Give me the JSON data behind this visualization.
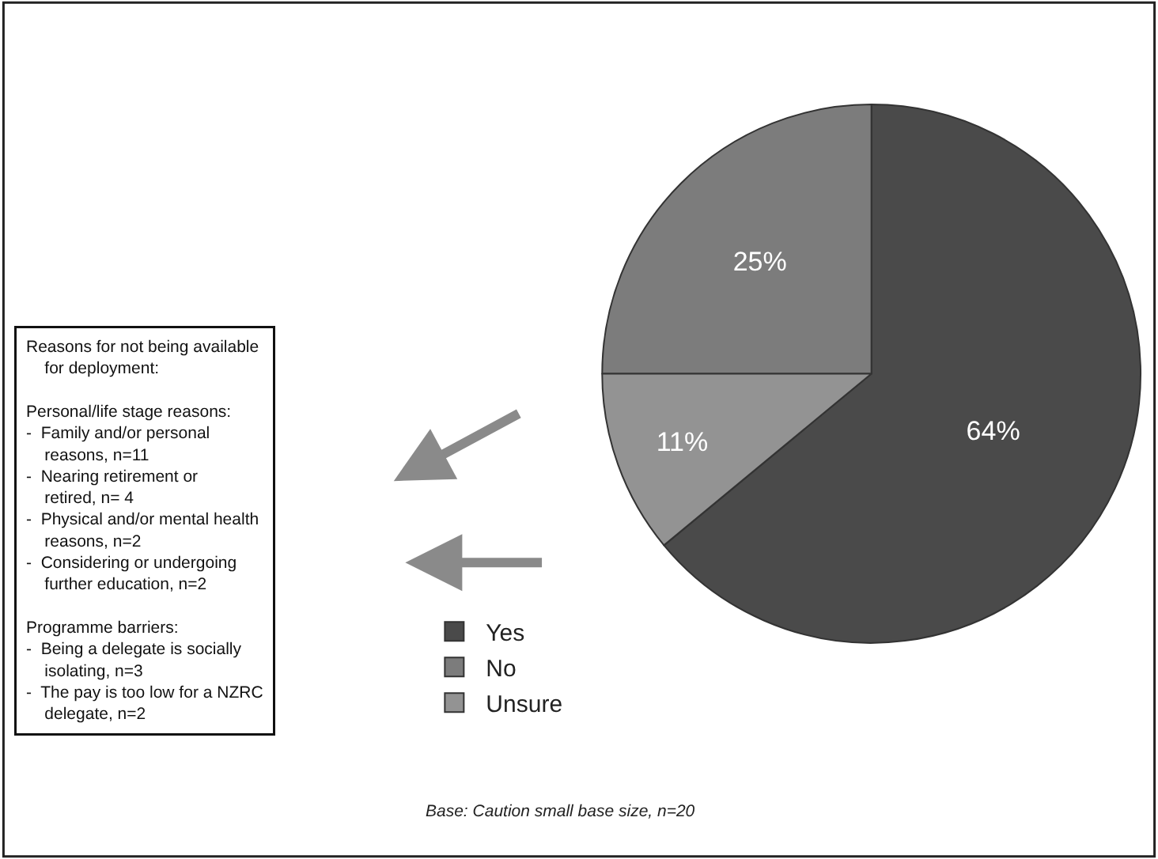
{
  "chart_data": {
    "type": "pie",
    "categories": [
      "Yes",
      "No",
      "Unsure"
    ],
    "values": [
      64,
      25,
      11
    ],
    "value_labels": [
      "64%",
      "25%",
      "11%"
    ],
    "colors": [
      "#4a4a4a",
      "#7c7c7c",
      "#939393"
    ],
    "legend": "bottom left",
    "annotations": [
      "Reasons for not being available for deployment:\n\nPersonal/life stage reasons:\n-  Family and/or personal reasons, n=11\n-  Nearing retirement or retired, n= 4\n-  Physical and/or mental health reasons, n=2\n-  Considering or undergoing further education, n=2\n\nProgramme barriers:\n-  Being a delegate is socially isolating, n=3\n-  The pay is too low for a NZRC delegate, n=2",
      "Base: Caution small base size, n=20"
    ]
  }
}
